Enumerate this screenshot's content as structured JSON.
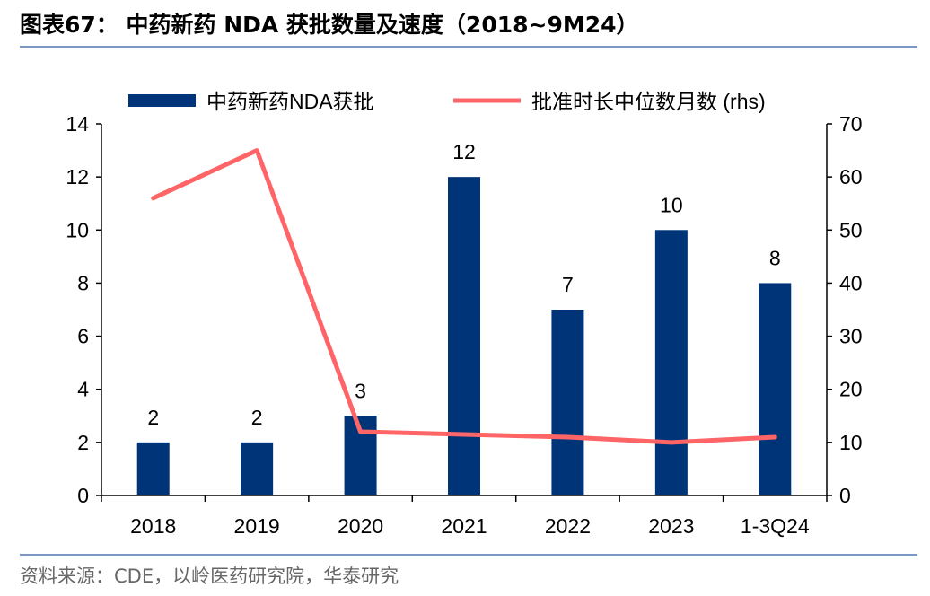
{
  "title": "图表67：  中药新药 NDA 获批数量及速度（2018~9M24）",
  "source": "资料来源：CDE，以岭医药研究院，华泰研究",
  "chart_data": {
    "type": "bar",
    "categories": [
      "2018",
      "2019",
      "2020",
      "2021",
      "2022",
      "2023",
      "1-3Q24"
    ],
    "series": [
      {
        "name": "中药新药NDA获批",
        "type": "bar",
        "axis": "left",
        "values": [
          2,
          2,
          3,
          12,
          7,
          10,
          8
        ],
        "color": "#003478",
        "data_labels": [
          "2",
          "2",
          "3",
          "12",
          "7",
          "10",
          "8"
        ]
      },
      {
        "name": "批准时长中位数月数 (rhs)",
        "type": "line",
        "axis": "right",
        "values": [
          56,
          65,
          12,
          11.5,
          11,
          10,
          11
        ],
        "color": "#ff6467"
      }
    ],
    "ylim": [
      0,
      14
    ],
    "yticks": [
      "0",
      "2",
      "4",
      "6",
      "8",
      "10",
      "12",
      "14"
    ],
    "y2lim": [
      0,
      70
    ],
    "y2ticks": [
      "0",
      "10",
      "20",
      "30",
      "40",
      "50",
      "60",
      "70"
    ],
    "legend_placement": "top",
    "grid": false
  }
}
